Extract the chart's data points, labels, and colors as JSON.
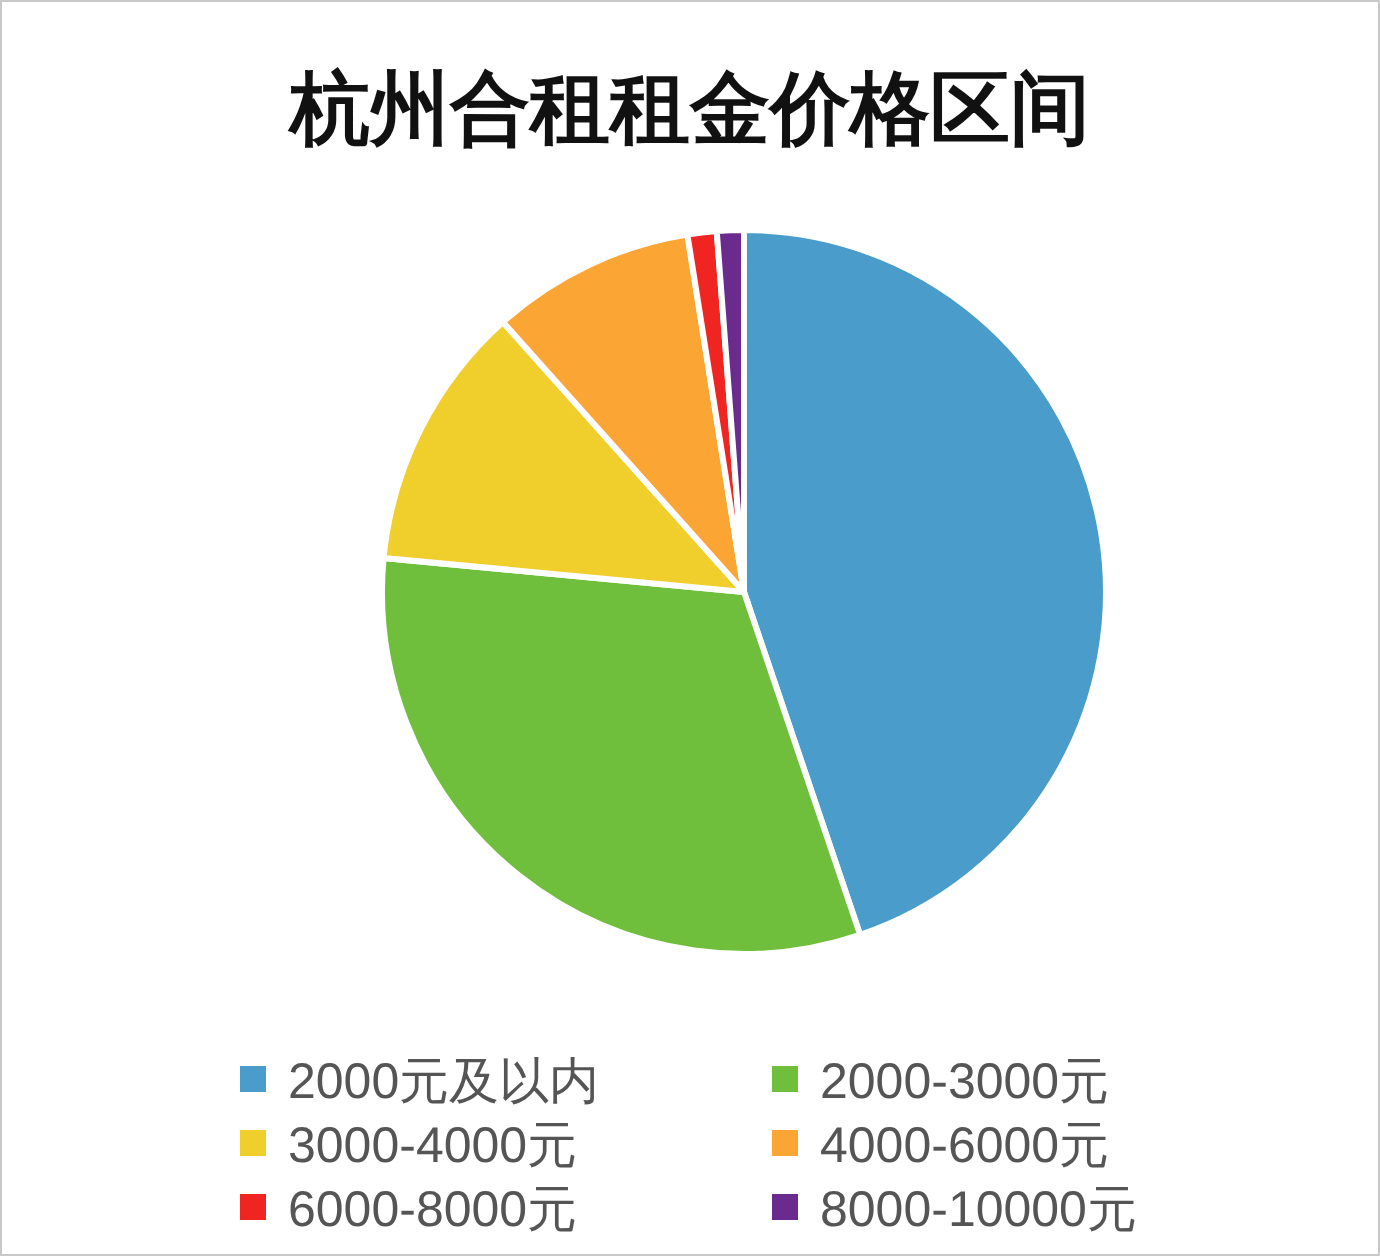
{
  "chart_data": {
    "type": "pie",
    "title": "杭州合租租金价格区间",
    "categories": [
      "2000元及以内",
      "2000-3000元",
      "3000-4000元",
      "4000-6000元",
      "6000-8000元",
      "8000-10000元"
    ],
    "values": [
      44.8,
      31.7,
      11.9,
      9.1,
      1.3,
      1.2
    ],
    "colors": [
      "#4a9cca",
      "#70bf3c",
      "#f0cf2c",
      "#fba535",
      "#f02420",
      "#6a2a8e"
    ],
    "legend": "bottom"
  }
}
